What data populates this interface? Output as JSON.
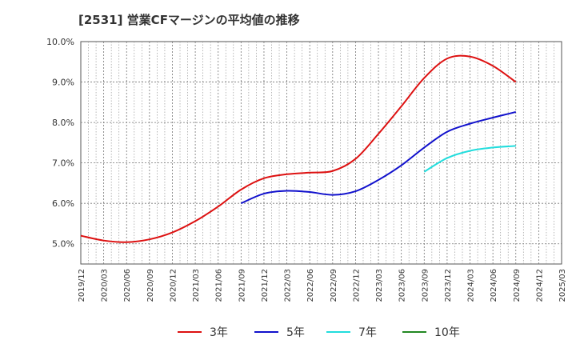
{
  "chart_data": {
    "type": "line",
    "title": "[2531]  営業CFマージンの平均値の推移",
    "xlabel": "",
    "ylabel": "",
    "x_ticks": [
      "2019/12",
      "2020/03",
      "2020/06",
      "2020/09",
      "2020/12",
      "2021/03",
      "2021/06",
      "2021/09",
      "2021/12",
      "2022/03",
      "2022/06",
      "2022/09",
      "2022/12",
      "2023/03",
      "2023/06",
      "2023/09",
      "2023/12",
      "2024/03",
      "2024/06",
      "2024/09",
      "2024/12",
      "2025/03"
    ],
    "y_ticks": [
      "5.0%",
      "6.0%",
      "7.0%",
      "8.0%",
      "9.0%",
      "10.0%"
    ],
    "ylim": [
      4.5,
      10.0
    ],
    "grid": true,
    "legend_position": "bottom",
    "series": [
      {
        "name": "3年",
        "color": "#dd1111",
        "points": [
          [
            "2019/12",
            5.2
          ],
          [
            "2020/03",
            5.08
          ],
          [
            "2020/06",
            5.04
          ],
          [
            "2020/09",
            5.11
          ],
          [
            "2020/12",
            5.28
          ],
          [
            "2021/03",
            5.56
          ],
          [
            "2021/06",
            5.92
          ],
          [
            "2021/09",
            6.34
          ],
          [
            "2021/12",
            6.62
          ],
          [
            "2022/03",
            6.72
          ],
          [
            "2022/06",
            6.76
          ],
          [
            "2022/09",
            6.8
          ],
          [
            "2022/12",
            7.1
          ],
          [
            "2023/03",
            7.72
          ],
          [
            "2023/06",
            8.4
          ],
          [
            "2023/09",
            9.1
          ],
          [
            "2023/12",
            9.58
          ],
          [
            "2024/03",
            9.63
          ],
          [
            "2024/06",
            9.4
          ],
          [
            "2024/09",
            9.0
          ]
        ]
      },
      {
        "name": "5年",
        "color": "#1111cc",
        "points": [
          [
            "2021/09",
            6.0
          ],
          [
            "2021/12",
            6.24
          ],
          [
            "2022/03",
            6.31
          ],
          [
            "2022/06",
            6.28
          ],
          [
            "2022/09",
            6.21
          ],
          [
            "2022/12",
            6.3
          ],
          [
            "2023/03",
            6.58
          ],
          [
            "2023/06",
            6.94
          ],
          [
            "2023/09",
            7.38
          ],
          [
            "2023/12",
            7.77
          ],
          [
            "2024/03",
            7.97
          ],
          [
            "2024/06",
            8.12
          ],
          [
            "2024/09",
            8.26
          ]
        ]
      },
      {
        "name": "7年",
        "color": "#22dddd",
        "points": [
          [
            "2023/09",
            6.78
          ],
          [
            "2023/12",
            7.12
          ],
          [
            "2024/03",
            7.3
          ],
          [
            "2024/06",
            7.38
          ],
          [
            "2024/09",
            7.42
          ]
        ]
      },
      {
        "name": "10年",
        "color": "#228822",
        "points": []
      }
    ]
  }
}
